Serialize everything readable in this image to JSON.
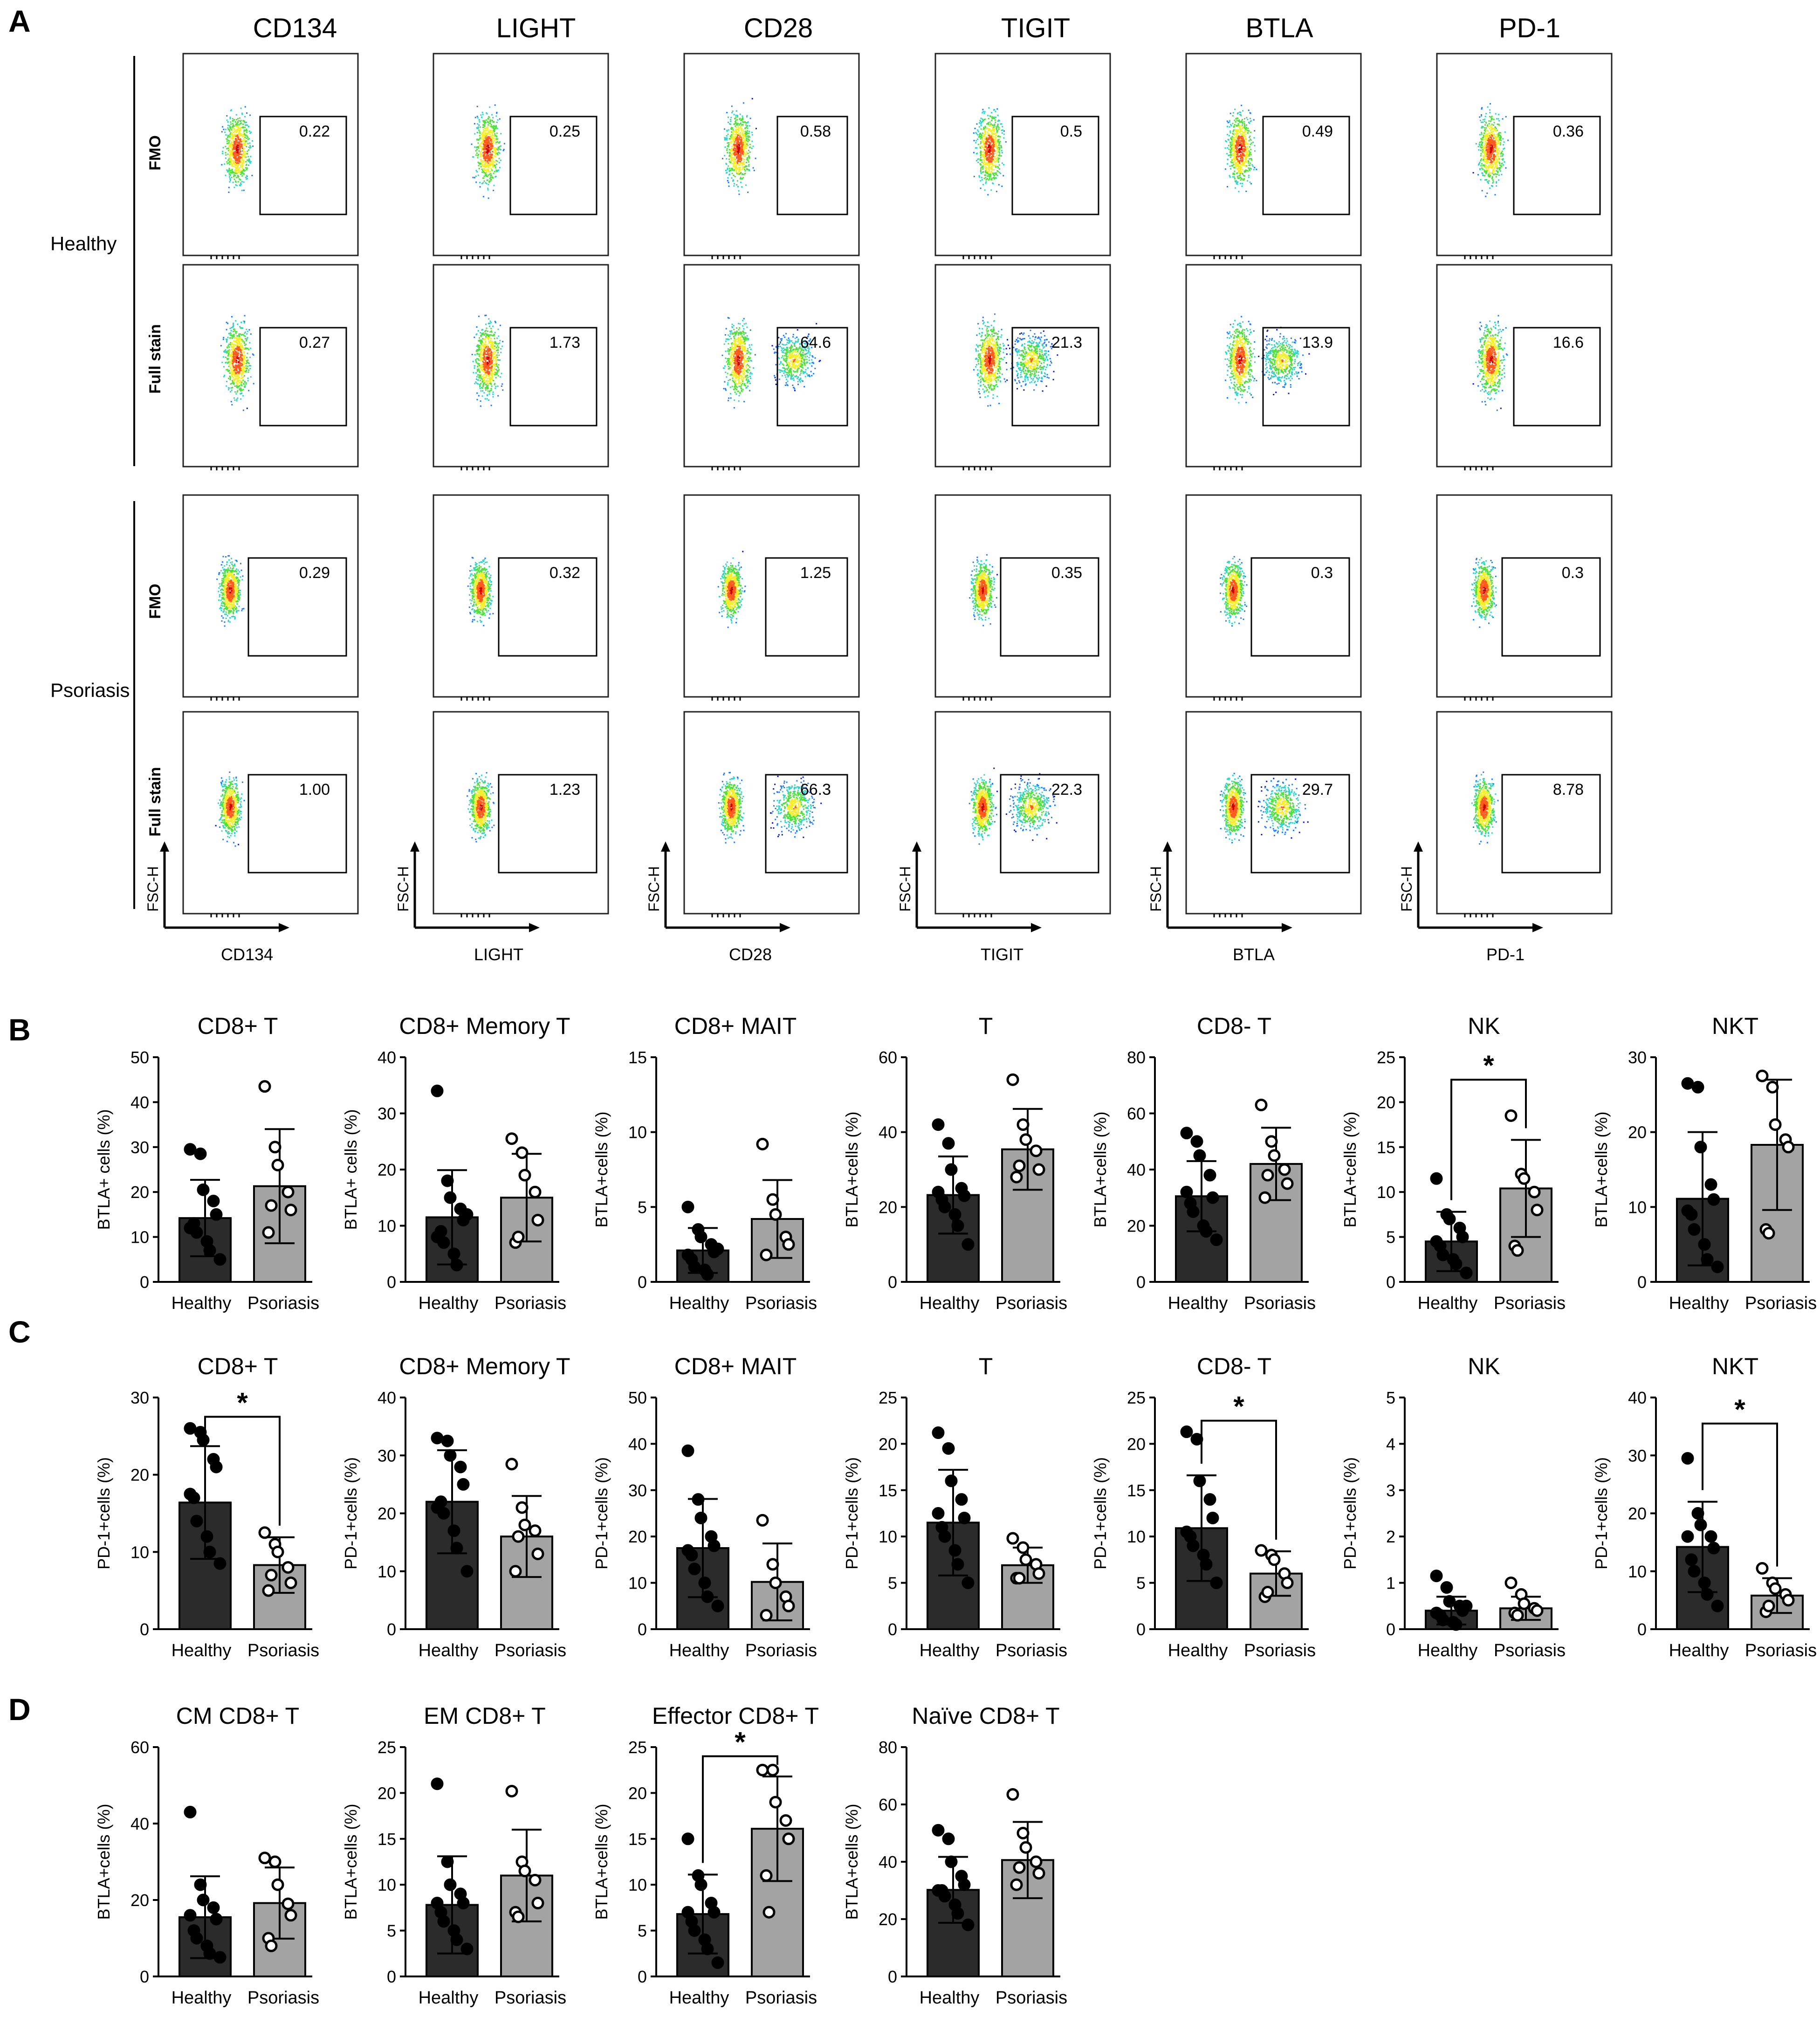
{
  "figure": {
    "panel_labels": [
      "A",
      "B",
      "C",
      "D"
    ]
  },
  "panel_a": {
    "markers": [
      "CD134",
      "LIGHT",
      "CD28",
      "TIGIT",
      "BTLA",
      "PD-1"
    ],
    "groups": [
      "Healthy",
      "Psoriasis"
    ],
    "rows": [
      "FMO",
      "Full stain"
    ],
    "y_axis_label": "FSC-H",
    "gate_values": {
      "healthy_fmo": [
        "0.22",
        "0.25",
        "0.58",
        "0.5",
        "0.49",
        "0.36"
      ],
      "healthy_full": [
        "0.27",
        "1.73",
        "64.6",
        "21.3",
        "13.9",
        "16.6"
      ],
      "psoriasis_fmo": [
        "0.29",
        "0.32",
        "1.25",
        "0.35",
        "0.3",
        "0.3"
      ],
      "psoriasis_full": [
        "1.00",
        "1.23",
        "66.3",
        "22.3",
        "29.7",
        "8.78"
      ]
    },
    "density_colors": [
      "#0a1acc",
      "#1f7aff",
      "#2ed3c8",
      "#4ee03a",
      "#f4ee2a",
      "#ff5a1a",
      "#cc0000"
    ]
  },
  "chart_data": [
    {
      "panel": "B",
      "type": "bar",
      "title": "CD8+ T",
      "ylabel": "BTLA+ cells (%)",
      "categories": [
        "Healthy",
        "Psoriasis"
      ],
      "ylim": [
        0,
        50
      ],
      "ticks": [
        0,
        10,
        20,
        30,
        40,
        50
      ],
      "means": [
        14.2,
        21.3
      ],
      "sd": [
        8.5,
        12.7
      ],
      "points": [
        [
          29.5,
          28.5,
          20.5,
          18,
          15,
          13,
          11,
          9,
          7,
          5,
          12
        ],
        [
          43.5,
          30,
          26,
          20,
          16,
          11,
          17
        ]
      ],
      "sig": false
    },
    {
      "panel": "B",
      "type": "bar",
      "title": "CD8+ Memory T",
      "ylabel": "BTLA+ cells (%)",
      "categories": [
        "Healthy",
        "Psoriasis"
      ],
      "ylim": [
        0,
        40
      ],
      "ticks": [
        0,
        10,
        20,
        30,
        40
      ],
      "means": [
        11.5,
        15
      ],
      "sd": [
        8.4,
        7.8
      ],
      "points": [
        [
          34,
          18,
          15,
          13,
          11,
          9,
          7,
          5,
          3,
          12,
          8
        ],
        [
          25.5,
          23,
          19,
          16,
          11,
          7,
          8
        ]
      ],
      "sig": false
    },
    {
      "panel": "B",
      "type": "bar",
      "title": "CD8+ MAIT",
      "ylabel": "BTLA+cells (%)",
      "categories": [
        "Healthy",
        "Psoriasis"
      ],
      "ylim": [
        0,
        15
      ],
      "ticks": [
        0,
        5,
        10,
        15
      ],
      "means": [
        2.1,
        4.2
      ],
      "sd": [
        1.5,
        2.6
      ],
      "points": [
        [
          5,
          3.5,
          3,
          2.5,
          2,
          1.5,
          1,
          0.8,
          0.5,
          2.2,
          1.8
        ],
        [
          9.2,
          5.5,
          4.5,
          3,
          2.5,
          1.8
        ]
      ],
      "sig": false
    },
    {
      "panel": "B",
      "type": "bar",
      "title": "T",
      "ylabel": "BTLA+cells (%)",
      "categories": [
        "Healthy",
        "Psoriasis"
      ],
      "ylim": [
        0,
        60
      ],
      "ticks": [
        0,
        20,
        40,
        60
      ],
      "means": [
        23.2,
        35.4
      ],
      "sd": [
        10.3,
        10.8
      ],
      "points": [
        [
          42,
          37,
          30,
          25,
          23,
          22,
          20,
          18,
          15,
          10,
          24
        ],
        [
          54,
          42,
          38,
          35,
          30,
          28,
          31
        ]
      ],
      "sig": false
    },
    {
      "panel": "B",
      "type": "bar",
      "title": "CD8- T",
      "ylabel": "BTLA+cells (%)",
      "categories": [
        "Healthy",
        "Psoriasis"
      ],
      "ylim": [
        0,
        80
      ],
      "ticks": [
        0,
        20,
        40,
        60,
        80
      ],
      "means": [
        30.5,
        42
      ],
      "sd": [
        12.5,
        12.9
      ],
      "points": [
        [
          53,
          50,
          45,
          38,
          30,
          28,
          25,
          20,
          18,
          15,
          32
        ],
        [
          63,
          50,
          45,
          40,
          35,
          30,
          38
        ]
      ],
      "sig": false
    },
    {
      "panel": "B",
      "type": "bar",
      "title": "NK",
      "ylabel": "BTLA+cells (%)",
      "categories": [
        "Healthy",
        "Psoriasis"
      ],
      "ylim": [
        0,
        25
      ],
      "ticks": [
        0,
        5,
        10,
        15,
        20,
        25
      ],
      "means": [
        4.5,
        10.4
      ],
      "sd": [
        3.3,
        5.4
      ],
      "points": [
        [
          11.5,
          7.5,
          7,
          6,
          5,
          4,
          3,
          2.5,
          2,
          1,
          4.5
        ],
        [
          18.5,
          12,
          11.5,
          10,
          8,
          4,
          3.5
        ]
      ],
      "sig": true,
      "sig_y": 22.5
    },
    {
      "panel": "B",
      "type": "bar",
      "title": "NKT",
      "ylabel": "BTLA+cells (%)",
      "categories": [
        "Healthy",
        "Psoriasis"
      ],
      "ylim": [
        0,
        30
      ],
      "ticks": [
        0,
        10,
        20,
        30
      ],
      "means": [
        11.1,
        18.3
      ],
      "sd": [
        8.9,
        8.7
      ],
      "points": [
        [
          26.5,
          26,
          18,
          13,
          11,
          9,
          7,
          5,
          3,
          2,
          9.5
        ],
        [
          27.5,
          26,
          21,
          19,
          18,
          7,
          6.5
        ]
      ],
      "sig": false
    },
    {
      "panel": "C",
      "type": "bar",
      "title": "CD8+ T",
      "ylabel": "PD-1+cells (%)",
      "categories": [
        "Healthy",
        "Psoriasis"
      ],
      "ylim": [
        0,
        30
      ],
      "ticks": [
        0,
        10,
        20,
        30
      ],
      "means": [
        16.4,
        8.3
      ],
      "sd": [
        7.3,
        3.6
      ],
      "points": [
        [
          26,
          25.5,
          24.5,
          22,
          21,
          17,
          14,
          12,
          10,
          8.5,
          17.5
        ],
        [
          12.5,
          11,
          10,
          8,
          6,
          5,
          7
        ]
      ],
      "sig": true,
      "sig_y": 27.5
    },
    {
      "panel": "C",
      "type": "bar",
      "title": "CD8+ Memory T",
      "ylabel": "PD-1+cells (%)",
      "categories": [
        "Healthy",
        "Psoriasis"
      ],
      "ylim": [
        0,
        40
      ],
      "ticks": [
        0,
        10,
        20,
        30,
        40
      ],
      "means": [
        22,
        16
      ],
      "sd": [
        8.9,
        7
      ],
      "points": [
        [
          33,
          32.5,
          30,
          28,
          25,
          22,
          20,
          17,
          14,
          10,
          21
        ],
        [
          28.5,
          21,
          18,
          17,
          13,
          10,
          16
        ]
      ],
      "sig": false
    },
    {
      "panel": "C",
      "type": "bar",
      "title": "CD8+ MAIT",
      "ylabel": "PD-1+cells (%)",
      "categories": [
        "Healthy",
        "Psoriasis"
      ],
      "ylim": [
        0,
        50
      ],
      "ticks": [
        0,
        10,
        20,
        30,
        40,
        50
      ],
      "means": [
        17.5,
        10.2
      ],
      "sd": [
        10.6,
        8.3
      ],
      "points": [
        [
          38.5,
          28,
          24,
          20,
          18,
          16,
          13,
          10,
          7,
          5,
          17
        ],
        [
          23.5,
          14,
          10,
          7,
          5,
          3
        ]
      ],
      "sig": false
    },
    {
      "panel": "C",
      "type": "bar",
      "title": "T",
      "ylabel": "PD-1+cells (%)",
      "categories": [
        "Healthy",
        "Psoriasis"
      ],
      "ylim": [
        0,
        25
      ],
      "ticks": [
        0,
        5,
        10,
        15,
        20,
        25
      ],
      "means": [
        11.5,
        6.9
      ],
      "sd": [
        5.7,
        1.9
      ],
      "points": [
        [
          21.2,
          19.5,
          16,
          14,
          12,
          11,
          10,
          8.5,
          7,
          5,
          12.5
        ],
        [
          9.8,
          8.8,
          7.5,
          7,
          6,
          5.5,
          5.5
        ]
      ],
      "sig": false
    },
    {
      "panel": "C",
      "type": "bar",
      "title": "CD8- T",
      "ylabel": "PD-1+cells (%)",
      "categories": [
        "Healthy",
        "Psoriasis"
      ],
      "ylim": [
        0,
        25
      ],
      "ticks": [
        0,
        5,
        10,
        15,
        20,
        25
      ],
      "means": [
        10.9,
        6
      ],
      "sd": [
        5.7,
        2.4
      ],
      "points": [
        [
          21.3,
          20.5,
          16,
          14,
          12,
          10,
          9,
          8,
          7,
          5,
          10.5
        ],
        [
          8.5,
          8,
          7.5,
          6,
          5,
          3.5,
          4
        ]
      ],
      "sig": true,
      "sig_y": 22.5
    },
    {
      "panel": "C",
      "type": "bar",
      "title": "NK",
      "ylabel": "PD-1+cells (%)",
      "categories": [
        "Healthy",
        "Psoriasis"
      ],
      "ylim": [
        0,
        5
      ],
      "ticks": [
        0,
        1,
        2,
        3,
        4,
        5
      ],
      "means": [
        0.4,
        0.45
      ],
      "sd": [
        0.3,
        0.25
      ],
      "points": [
        [
          1.15,
          0.9,
          0.6,
          0.5,
          0.4,
          0.3,
          0.2,
          0.15,
          0.1,
          0.5,
          0.35
        ],
        [
          1,
          0.75,
          0.55,
          0.45,
          0.4,
          0.35,
          0.3
        ]
      ],
      "sig": false
    },
    {
      "panel": "C",
      "type": "bar",
      "title": "NKT",
      "ylabel": "PD-1+cells (%)",
      "categories": [
        "Healthy",
        "Psoriasis"
      ],
      "ylim": [
        0,
        40
      ],
      "ticks": [
        0,
        10,
        20,
        30,
        40
      ],
      "means": [
        14.2,
        5.8
      ],
      "sd": [
        7.8,
        3
      ],
      "points": [
        [
          29.5,
          20,
          18,
          16,
          14,
          12,
          10,
          8,
          6,
          4,
          16
        ],
        [
          10.5,
          8,
          7,
          6,
          5,
          3,
          4
        ]
      ],
      "sig": true,
      "sig_y": 35.5
    },
    {
      "panel": "D",
      "type": "bar",
      "title": "CM CD8+ T",
      "ylabel": "BTLA+cells (%)",
      "categories": [
        "Healthy",
        "Psoriasis"
      ],
      "ylim": [
        0,
        60
      ],
      "ticks": [
        0,
        20,
        40,
        60
      ],
      "means": [
        15.5,
        19.2
      ],
      "sd": [
        10.7,
        9.3
      ],
      "points": [
        [
          43,
          24,
          20,
          18,
          15,
          12,
          10,
          8,
          6,
          5,
          16
        ],
        [
          31,
          30,
          24,
          19,
          16,
          10,
          8
        ]
      ],
      "sig": false
    },
    {
      "panel": "D",
      "type": "bar",
      "title": "EM CD8+ T",
      "ylabel": "BTLA+cells (%)",
      "categories": [
        "Healthy",
        "Psoriasis"
      ],
      "ylim": [
        0,
        25
      ],
      "ticks": [
        0,
        5,
        10,
        15,
        20,
        25
      ],
      "means": [
        7.8,
        11
      ],
      "sd": [
        5.3,
        5
      ],
      "points": [
        [
          21,
          12.5,
          10,
          9,
          8,
          7,
          6,
          5,
          4,
          3,
          8
        ],
        [
          20.2,
          12.5,
          11.5,
          10.5,
          8,
          7,
          6.5
        ]
      ],
      "sig": false
    },
    {
      "panel": "D",
      "type": "bar",
      "title": "Effector CD8+ T",
      "ylabel": "BTLA+cells (%)",
      "categories": [
        "Healthy",
        "Psoriasis"
      ],
      "ylim": [
        0,
        25
      ],
      "ticks": [
        0,
        5,
        10,
        15,
        20,
        25
      ],
      "means": [
        6.8,
        16.1
      ],
      "sd": [
        4.3,
        5.7
      ],
      "points": [
        [
          15,
          11,
          10,
          8,
          7,
          6,
          5,
          4,
          3,
          1.5,
          7
        ],
        [
          22.5,
          22.5,
          19,
          17,
          15,
          11,
          7
        ]
      ],
      "sig": true,
      "sig_y": 24
    },
    {
      "panel": "D",
      "type": "bar",
      "title": "Naïve CD8+ T",
      "ylabel": "BTLA+cells (%)",
      "categories": [
        "Healthy",
        "Psoriasis"
      ],
      "ylim": [
        0,
        80
      ],
      "ticks": [
        0,
        20,
        40,
        60,
        80
      ],
      "means": [
        30.2,
        40.6
      ],
      "sd": [
        11.5,
        13.3
      ],
      "points": [
        [
          51,
          48,
          40,
          35,
          32,
          30,
          28,
          25,
          22,
          18,
          30
        ],
        [
          63.5,
          50,
          45,
          40,
          36,
          32,
          38
        ]
      ],
      "sig": false
    }
  ]
}
